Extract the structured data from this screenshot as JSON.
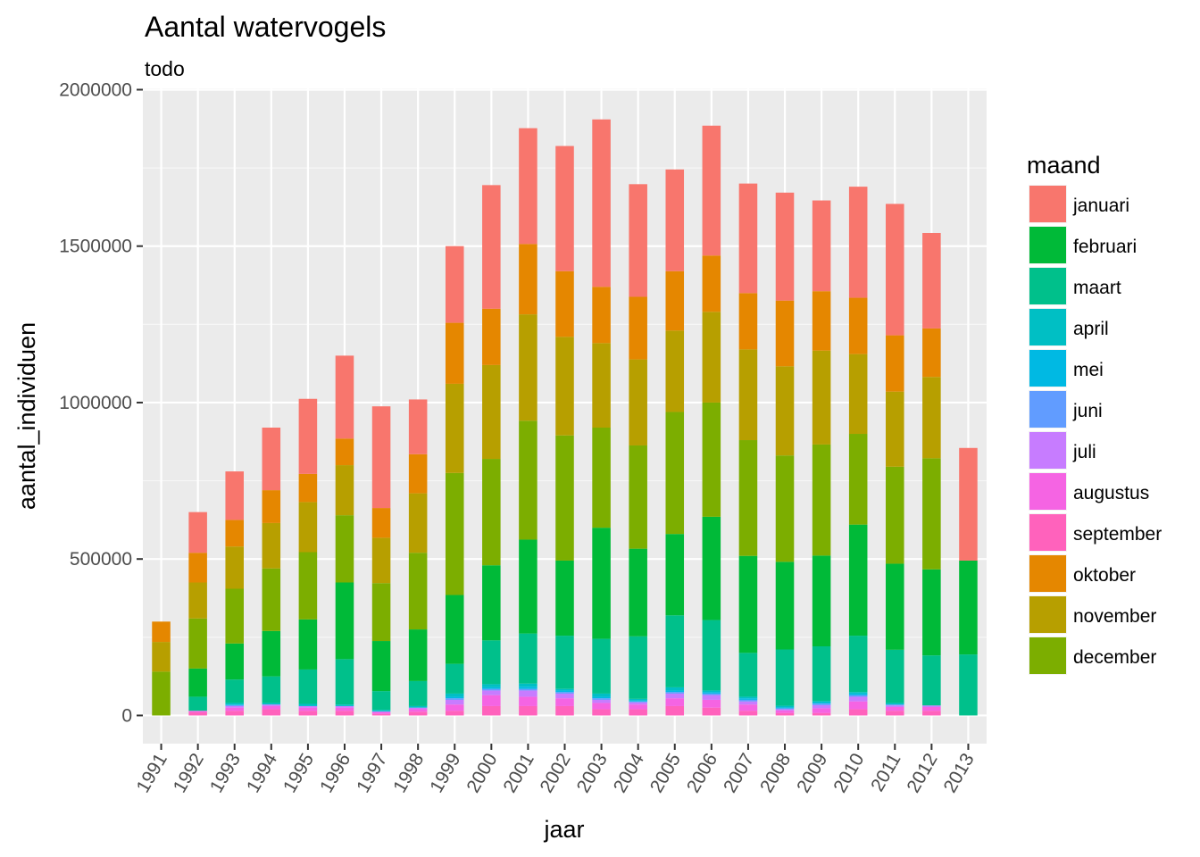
{
  "chart_data": {
    "type": "bar",
    "stacked": true,
    "title": "Aantal watervogels",
    "subtitle": "todo",
    "xlabel": "jaar",
    "ylabel": "aantal_individuen",
    "ylim": [
      -90000,
      2000000
    ],
    "yticks": [
      0,
      500000,
      1000000,
      1500000,
      2000000
    ],
    "yticklabels": [
      "0",
      "500000",
      "1000000",
      "1500000",
      "2000000"
    ],
    "grid": true,
    "legend_title": "maand",
    "legend_position": "right",
    "categories": [
      "1991",
      "1992",
      "1993",
      "1994",
      "1995",
      "1996",
      "1997",
      "1998",
      "1999",
      "2000",
      "2001",
      "2002",
      "2003",
      "2004",
      "2005",
      "2006",
      "2007",
      "2008",
      "2009",
      "2010",
      "2011",
      "2012",
      "2013"
    ],
    "series": [
      {
        "name": "september",
        "color": "#FF62BC",
        "values": [
          0,
          10000,
          15000,
          20000,
          15000,
          15000,
          5000,
          12000,
          15000,
          30000,
          30000,
          30000,
          20000,
          20000,
          30000,
          25000,
          15000,
          8000,
          8000,
          20000,
          15000,
          15000,
          0
        ]
      },
      {
        "name": "augustus",
        "color": "#F564E3",
        "values": [
          0,
          5000,
          10000,
          10000,
          10000,
          10000,
          5000,
          8000,
          20000,
          35000,
          30000,
          25000,
          20000,
          15000,
          25000,
          25000,
          20000,
          8000,
          15000,
          25000,
          12000,
          12000,
          0
        ]
      },
      {
        "name": "juli",
        "color": "#C77CFF",
        "values": [
          0,
          0,
          5000,
          5000,
          5000,
          5000,
          3000,
          5000,
          15000,
          15000,
          20000,
          15000,
          10000,
          7000,
          15000,
          15000,
          10000,
          4000,
          10000,
          15000,
          5000,
          5000,
          0
        ]
      },
      {
        "name": "juni",
        "color": "#619CFF",
        "values": [
          0,
          0,
          3000,
          0,
          0,
          0,
          0,
          0,
          5000,
          5000,
          5000,
          5000,
          5000,
          3000,
          5000,
          5000,
          5000,
          3000,
          5000,
          5000,
          3000,
          0,
          0
        ]
      },
      {
        "name": "mei",
        "color": "#00B9E3",
        "values": [
          0,
          0,
          2000,
          0,
          0,
          0,
          0,
          0,
          5000,
          5000,
          7000,
          5000,
          5000,
          3000,
          5000,
          5000,
          5000,
          3000,
          3000,
          5000,
          0,
          0,
          0
        ]
      },
      {
        "name": "april",
        "color": "#00BFC4",
        "values": [
          0,
          0,
          5000,
          5000,
          7000,
          5000,
          5000,
          5000,
          10000,
          10000,
          10000,
          5000,
          10000,
          5000,
          10000,
          5000,
          5000,
          5000,
          5000,
          5000,
          5000,
          0,
          0
        ]
      },
      {
        "name": "maart",
        "color": "#00C08B",
        "values": [
          0,
          45000,
          75000,
          85000,
          110000,
          145000,
          60000,
          80000,
          95000,
          140000,
          160000,
          170000,
          175000,
          200000,
          230000,
          225000,
          140000,
          180000,
          175000,
          180000,
          170000,
          160000,
          195000
        ]
      },
      {
        "name": "februari",
        "color": "#00BA38",
        "values": [
          0,
          90000,
          115000,
          145000,
          160000,
          245000,
          160000,
          165000,
          220000,
          240000,
          300000,
          240000,
          355000,
          280000,
          260000,
          330000,
          310000,
          280000,
          290000,
          355000,
          275000,
          275000,
          300000
        ]
      },
      {
        "name": "december",
        "color": "#7CAE00",
        "values": [
          140000,
          160000,
          175000,
          200000,
          215000,
          215000,
          185000,
          245000,
          390000,
          340000,
          380000,
          400000,
          320000,
          330000,
          390000,
          365000,
          370000,
          340000,
          355000,
          290000,
          310000,
          355000,
          0
        ]
      },
      {
        "name": "november",
        "color": "#B79F00",
        "values": [
          95000,
          115000,
          135000,
          145000,
          160000,
          160000,
          145000,
          190000,
          285000,
          300000,
          340000,
          315000,
          270000,
          275000,
          260000,
          290000,
          290000,
          285000,
          300000,
          255000,
          240000,
          260000,
          0
        ]
      },
      {
        "name": "oktober",
        "color": "#E58700",
        "values": [
          65000,
          95000,
          85000,
          105000,
          90000,
          85000,
          95000,
          125000,
          195000,
          180000,
          225000,
          210000,
          180000,
          200000,
          190000,
          180000,
          180000,
          210000,
          190000,
          180000,
          180000,
          155000,
          0
        ]
      },
      {
        "name": "januari",
        "color": "#F8766D",
        "values": [
          0,
          130000,
          155000,
          200000,
          240000,
          265000,
          325000,
          175000,
          245000,
          395000,
          370000,
          400000,
          535000,
          360000,
          325000,
          415000,
          350000,
          345000,
          290000,
          355000,
          420000,
          305000,
          360000
        ]
      }
    ],
    "legend_order": [
      "januari",
      "februari",
      "maart",
      "april",
      "mei",
      "juni",
      "juli",
      "augustus",
      "september",
      "oktober",
      "november",
      "december"
    ]
  }
}
